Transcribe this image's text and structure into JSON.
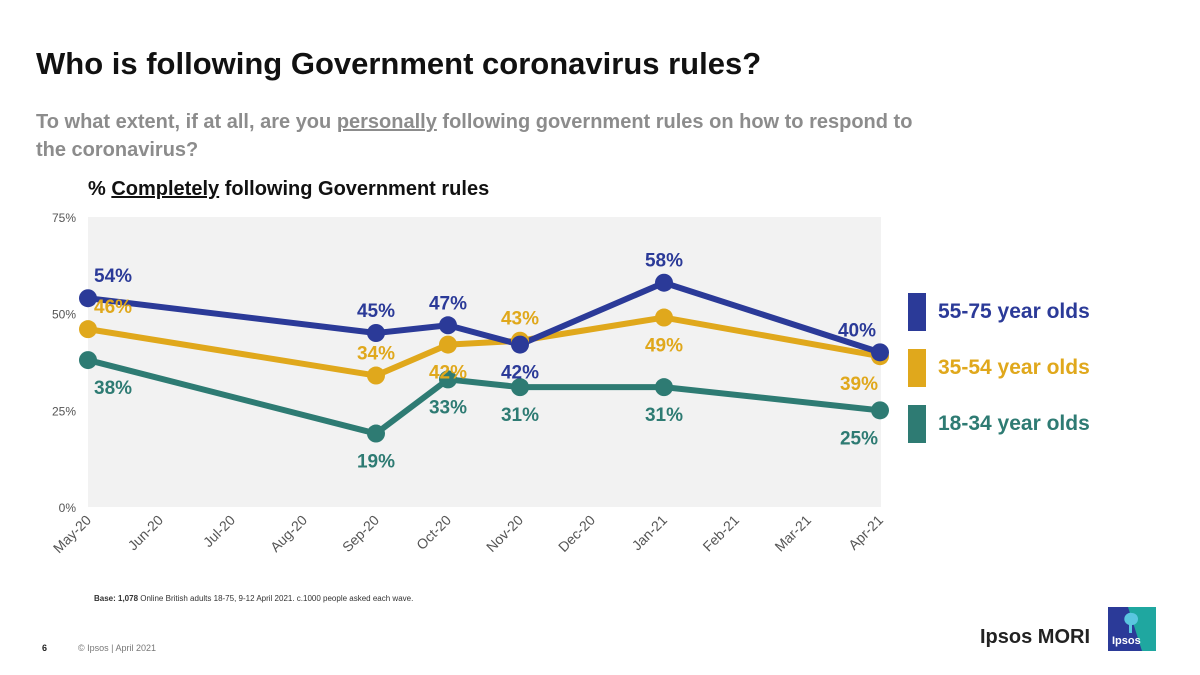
{
  "header": {
    "title": "Who is following Government coronavirus rules?",
    "subtitle_pre": "To what extent, if at all, are you ",
    "subtitle_underlined": "personally",
    "subtitle_post": " following government rules on how to respond to the coronavirus?"
  },
  "chart_heading": {
    "prefix": "% ",
    "underlined": "Completely",
    "suffix": " following Government rules"
  },
  "chart_data": {
    "type": "line",
    "title": "% Completely following Government rules",
    "xlabel": "",
    "ylabel": "",
    "ylim": [
      0,
      75
    ],
    "yticks": [
      0,
      25,
      50,
      75
    ],
    "ytick_labels": [
      "0%",
      "25%",
      "50%",
      "75%"
    ],
    "categories": [
      "May-20",
      "Jun-20",
      "Jul-20",
      "Aug-20",
      "Sep-20",
      "Oct-20",
      "Nov-20",
      "Dec-20",
      "Jan-21",
      "Feb-21",
      "Mar-21",
      "Apr-21"
    ],
    "grid": false,
    "legend_position": "right",
    "series": [
      {
        "name": "55-75 year olds",
        "color": "#2b3a98",
        "points": [
          {
            "x": "May-20",
            "y": 54,
            "label": "54%",
            "label_pos": "above"
          },
          {
            "x": "Sep-20",
            "y": 45,
            "label": "45%",
            "label_pos": "above"
          },
          {
            "x": "Oct-20",
            "y": 47,
            "label": "47%",
            "label_pos": "above"
          },
          {
            "x": "Nov-20",
            "y": 42,
            "label": "42%",
            "label_pos": "below"
          },
          {
            "x": "Jan-21",
            "y": 58,
            "label": "58%",
            "label_pos": "above"
          },
          {
            "x": "Apr-21",
            "y": 40,
            "label": "40%",
            "label_pos": "above-left"
          }
        ]
      },
      {
        "name": "35-54 year olds",
        "color": "#e0a81c",
        "points": [
          {
            "x": "May-20",
            "y": 46,
            "label": "46%",
            "label_pos": "above"
          },
          {
            "x": "Sep-20",
            "y": 34,
            "label": "34%",
            "label_pos": "above"
          },
          {
            "x": "Oct-20",
            "y": 42,
            "label": "42%",
            "label_pos": "below"
          },
          {
            "x": "Nov-20",
            "y": 43,
            "label": "43%",
            "label_pos": "above"
          },
          {
            "x": "Jan-21",
            "y": 49,
            "label": "49%",
            "label_pos": "below"
          },
          {
            "x": "Apr-21",
            "y": 39,
            "label": "39%",
            "label_pos": "below-left"
          }
        ]
      },
      {
        "name": "18-34 year olds",
        "color": "#2e7b73",
        "points": [
          {
            "x": "May-20",
            "y": 38,
            "label": "38%",
            "label_pos": "below"
          },
          {
            "x": "Sep-20",
            "y": 19,
            "label": "19%",
            "label_pos": "below"
          },
          {
            "x": "Oct-20",
            "y": 33,
            "label": "33%",
            "label_pos": "below"
          },
          {
            "x": "Nov-20",
            "y": 31,
            "label": "31%",
            "label_pos": "below"
          },
          {
            "x": "Jan-21",
            "y": 31,
            "label": "31%",
            "label_pos": "below"
          },
          {
            "x": "Apr-21",
            "y": 25,
            "label": "25%",
            "label_pos": "below-left"
          }
        ]
      }
    ]
  },
  "footer": {
    "base_bold": "Base: 1,078",
    "base_text": " Online British adults 18-75, 9-12 April 2021. c.1000 people asked each wave.",
    "page_number": "6",
    "copyright": "© Ipsos | April 2021",
    "brand": "Ipsos MORI",
    "logo_text": "Ipsos"
  },
  "colors": {
    "plot_background": "#f2f2f2",
    "logo_dark": "#2b3a98",
    "logo_teal": "#1fa7a0"
  }
}
